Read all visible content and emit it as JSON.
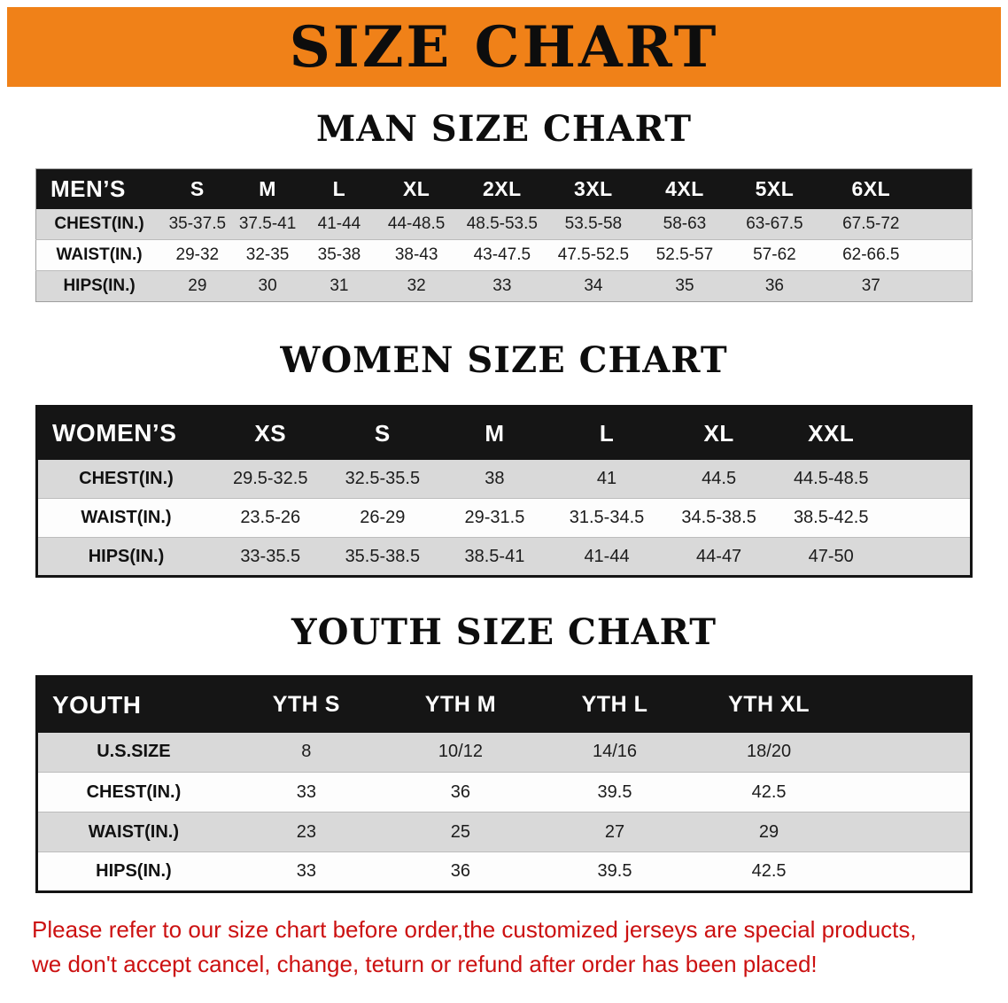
{
  "banner": {
    "title": "SIZE CHART"
  },
  "sections": {
    "man": {
      "heading": "MAN SIZE CHART",
      "table": {
        "header": [
          "MEN’S",
          "S",
          "M",
          "L",
          "XL",
          "2XL",
          "3XL",
          "4XL",
          "5XL",
          "6XL"
        ],
        "rows": [
          [
            "CHEST(IN.)",
            "35-37.5",
            "37.5-41",
            "41-44",
            "44-48.5",
            "48.5-53.5",
            "53.5-58",
            "58-63",
            "63-67.5",
            "67.5-72"
          ],
          [
            "WAIST(IN.)",
            "29-32",
            "32-35",
            "35-38",
            "38-43",
            "43-47.5",
            "47.5-52.5",
            "52.5-57",
            "57-62",
            "62-66.5"
          ],
          [
            "HIPS(IN.)",
            "29",
            "30",
            "31",
            "32",
            "33",
            "34",
            "35",
            "36",
            "37"
          ]
        ]
      }
    },
    "women": {
      "heading": "WOMEN SIZE CHART",
      "table": {
        "header": [
          "WOMEN’S",
          "XS",
          "S",
          "M",
          "L",
          "XL",
          "XXL"
        ],
        "rows": [
          [
            "CHEST(IN.)",
            "29.5-32.5",
            "32.5-35.5",
            "38",
            "41",
            "44.5",
            "44.5-48.5"
          ],
          [
            "WAIST(IN.)",
            "23.5-26",
            "26-29",
            "29-31.5",
            "31.5-34.5",
            "34.5-38.5",
            "38.5-42.5"
          ],
          [
            "HIPS(IN.)",
            "33-35.5",
            "35.5-38.5",
            "38.5-41",
            "41-44",
            "44-47",
            "47-50"
          ]
        ]
      }
    },
    "youth": {
      "heading": "YOUTH SIZE CHART",
      "table": {
        "header": [
          "YOUTH",
          "YTH S",
          "YTH M",
          "YTH L",
          "YTH XL"
        ],
        "rows": [
          [
            "U.S.SIZE",
            "8",
            "10/12",
            "14/16",
            "18/20"
          ],
          [
            "CHEST(IN.)",
            "33",
            "36",
            "39.5",
            "42.5"
          ],
          [
            "WAIST(IN.)",
            "23",
            "25",
            "27",
            "29"
          ],
          [
            "HIPS(IN.)",
            "33",
            "36",
            "39.5",
            "42.5"
          ]
        ]
      }
    }
  },
  "disclaimer": {
    "line1": "Please refer to our size chart before order,the customized jerseys are special products,",
    "line2": "we don't accept cancel, change, teturn or refund after order has been placed!"
  },
  "colors": {
    "banner_orange": "#f08118",
    "table_header_black": "#151515",
    "stripe_gray": "#d9d9d9",
    "disclaimer_red": "#cc1111"
  }
}
